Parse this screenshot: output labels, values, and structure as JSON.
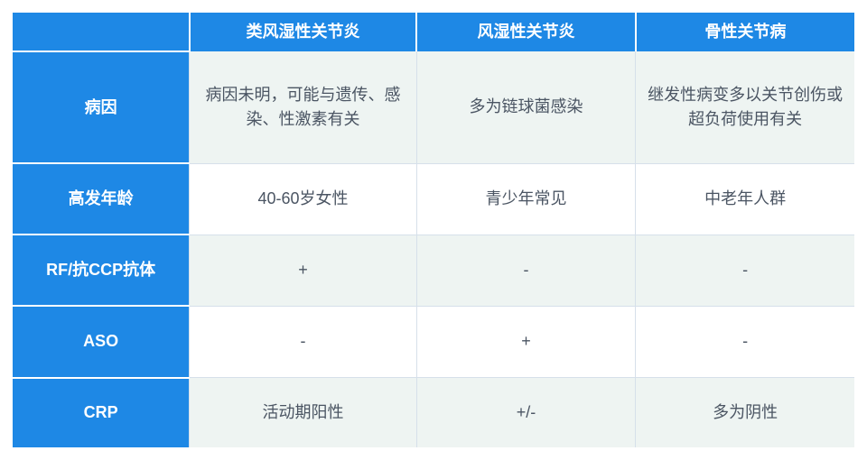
{
  "table": {
    "type": "table",
    "header_bg": "#1e88e5",
    "header_text_color": "#ffffff",
    "rowheader_bg": "#1e88e5",
    "rowheader_text_color": "#ffffff",
    "cell_text_color": "#4b5563",
    "cell_border_color": "#d6e0ea",
    "alt_row_bg": "#eef4f2",
    "row_bg": "#ffffff",
    "white_divider": "#ffffff",
    "font_size_pt": 18,
    "columns": [
      "",
      "类风湿性关节炎",
      "风湿性关节炎",
      "骨性关节病"
    ],
    "column_widths_pct": [
      21,
      27,
      26,
      26
    ],
    "rows": [
      {
        "label": "病因",
        "cells": [
          "病因未明，可能与遗传、感染、性激素有关",
          "多为链球菌感染",
          "继发性病变多以关节创伤或超负荷使用有关"
        ],
        "alt": true
      },
      {
        "label": "高发年龄",
        "cells": [
          "40-60岁女性",
          "青少年常见",
          "中老年人群"
        ],
        "alt": false
      },
      {
        "label": "RF/抗CCP抗体",
        "cells": [
          "+",
          "-",
          "-"
        ],
        "alt": true
      },
      {
        "label": "ASO",
        "cells": [
          "-",
          "+",
          "-"
        ],
        "alt": false
      },
      {
        "label": "CRP",
        "cells": [
          "活动期阳性",
          "+/-",
          "多为阴性"
        ],
        "alt": true
      }
    ]
  }
}
